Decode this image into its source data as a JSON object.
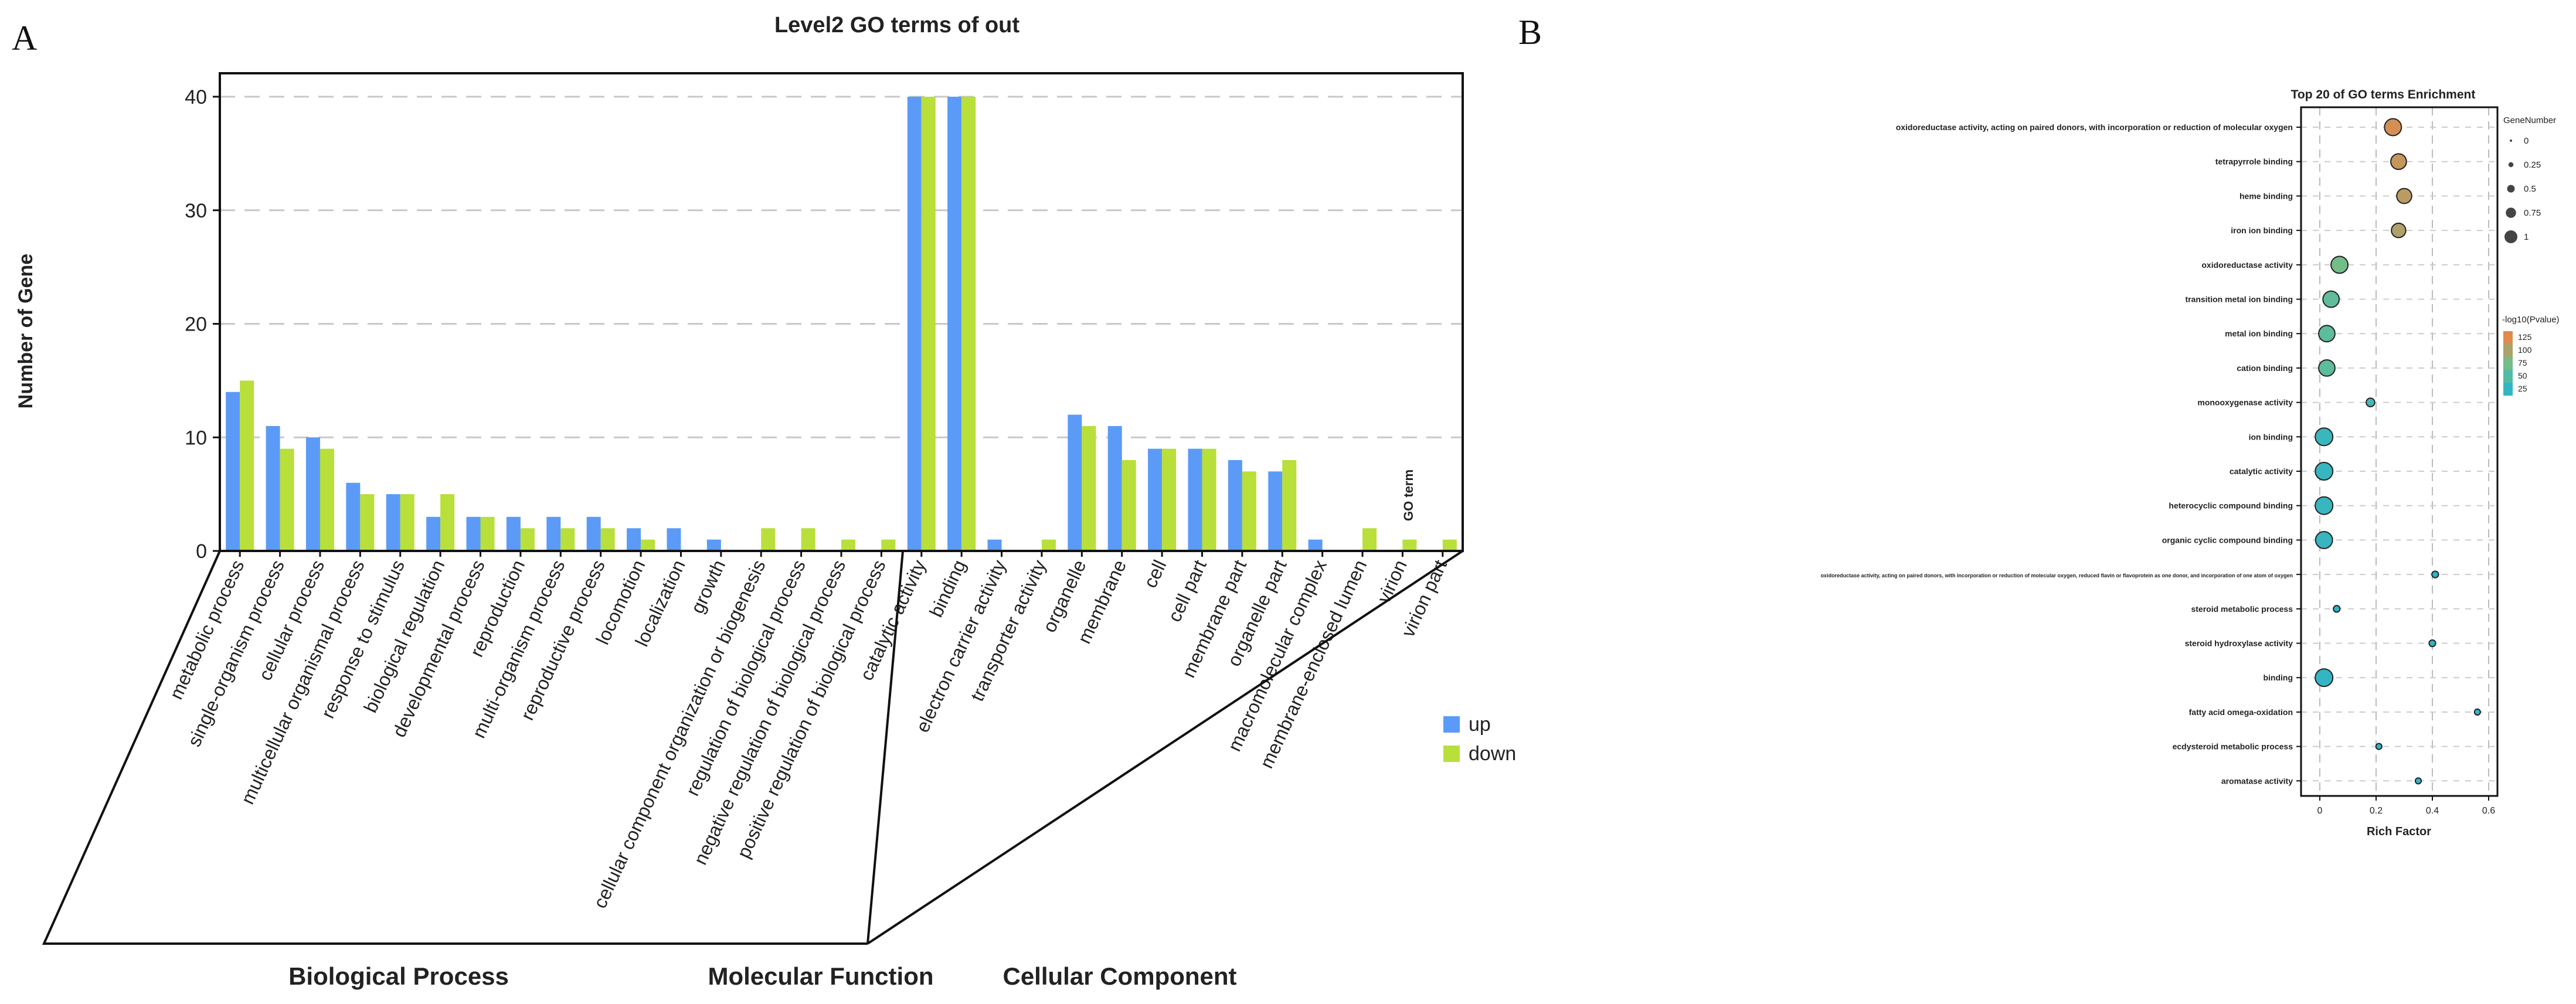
{
  "panel_a": {
    "letter": "A",
    "title": "Level2 GO terms of out",
    "y_axis_label": "Number of Gene",
    "go_term_label": "GO term",
    "groups": [
      "Biological Process",
      "Molecular Function",
      "Cellular Component"
    ],
    "legend": [
      {
        "name": "up",
        "color": "#5b9bf7"
      },
      {
        "name": "down",
        "color": "#b8df3a"
      }
    ]
  },
  "panel_b": {
    "letter": "B",
    "title": "Top 20 of GO terms Enrichment",
    "x_axis_label": "Rich Factor",
    "size_legend_title": "GeneNumber",
    "color_legend_title": "-log10(Pvalue)",
    "size_legend": [
      "0",
      "0.25",
      "0.5",
      "0.75",
      "1"
    ],
    "color_legend": [
      "125",
      "100",
      "75",
      "50",
      "25"
    ],
    "colors": {
      "low": "#2eb4c9",
      "mid": "#6fbf8b",
      "high": "#e08a4e"
    }
  },
  "chart_data": [
    {
      "type": "bar",
      "title": "Level2 GO terms of out",
      "xlabel": "GO term",
      "ylabel": "Number of Gene",
      "ylim": [
        0,
        40
      ],
      "yticks": [
        0,
        10,
        20,
        30,
        40
      ],
      "grid": true,
      "categories": [
        "metabolic process",
        "single-organism process",
        "cellular process",
        "multicellular organismal process",
        "response to stimulus",
        "biological regulation",
        "developmental process",
        "reproduction",
        "multi-organism process",
        "reproductive process",
        "locomotion",
        "localization",
        "growth",
        "cellular component organization or biogenesis",
        "regulation of biological process",
        "negative regulation of biological process",
        "positive regulation of biological process",
        "catalytic activity",
        "binding",
        "electron carrier activity",
        "transporter activity",
        "organelle",
        "membrane",
        "cell",
        "cell part",
        "membrane part",
        "organelle part",
        "macromolecular complex",
        "membrane-enclosed lumen",
        "virion",
        "virion part"
      ],
      "category_groups": [
        {
          "name": "Biological Process",
          "count": 17
        },
        {
          "name": "Molecular Function",
          "count": 4
        },
        {
          "name": "Cellular Component",
          "count": 10
        }
      ],
      "series": [
        {
          "name": "up",
          "values": [
            14,
            11,
            10,
            6,
            5,
            3,
            3,
            3,
            3,
            3,
            2,
            2,
            1,
            0,
            0,
            0,
            0,
            40,
            40,
            1,
            0,
            12,
            11,
            9,
            9,
            8,
            7,
            1,
            0,
            0,
            0
          ]
        },
        {
          "name": "down",
          "values": [
            15,
            9,
            9,
            5,
            5,
            5,
            3,
            2,
            2,
            2,
            1,
            0,
            0,
            2,
            2,
            1,
            1,
            40,
            40,
            0,
            1,
            11,
            8,
            9,
            9,
            7,
            8,
            0,
            2,
            1,
            1
          ]
        }
      ]
    },
    {
      "type": "scatter",
      "title": "Top 20 of GO terms Enrichment",
      "xlabel": "Rich Factor",
      "ylabel": "",
      "xlim": [
        -0.05,
        0.6
      ],
      "xticks": [
        0,
        0.2,
        0.4,
        0.6
      ],
      "grid": true,
      "terms": [
        "oxidoreductase activity, acting on paired donors, with incorporation or reduction of molecular oxygen",
        "tetrapyrrole binding",
        "heme binding",
        "iron ion binding",
        "oxidoreductase activity",
        "transition metal ion binding",
        "metal ion binding",
        "cation binding",
        "monooxygenase activity",
        "ion binding",
        "catalytic activity",
        "heterocyclic compound binding",
        "organic cyclic compound binding",
        "oxidoreductase activity, acting on paired donors, with incorporation or reduction of molecular oxygen, reduced flavin or flavoprotein as one donor, and incorporation of one atom of oxygen",
        "steroid metabolic process",
        "steroid hydroxylase activity",
        "binding",
        "fatty acid omega-oxidation",
        "ecdysteroid metabolic process",
        "aromatase activity"
      ],
      "rich_factor": [
        0.26,
        0.28,
        0.3,
        0.28,
        0.07,
        0.04,
        0.025,
        0.025,
        0.18,
        0.015,
        0.015,
        0.015,
        0.015,
        0.41,
        0.06,
        0.4,
        0.015,
        0.56,
        0.21,
        0.35
      ],
      "gene_number": [
        0.95,
        0.85,
        0.8,
        0.75,
        0.95,
        0.9,
        0.9,
        0.9,
        0.3,
        1.0,
        1.0,
        1.0,
        0.95,
        0.15,
        0.15,
        0.15,
        1.0,
        0.1,
        0.1,
        0.1
      ],
      "neg_log10_pvalue": [
        120,
        112,
        108,
        102,
        75,
        60,
        58,
        58,
        40,
        30,
        28,
        28,
        28,
        20,
        20,
        20,
        25,
        18,
        18,
        18
      ]
    }
  ]
}
